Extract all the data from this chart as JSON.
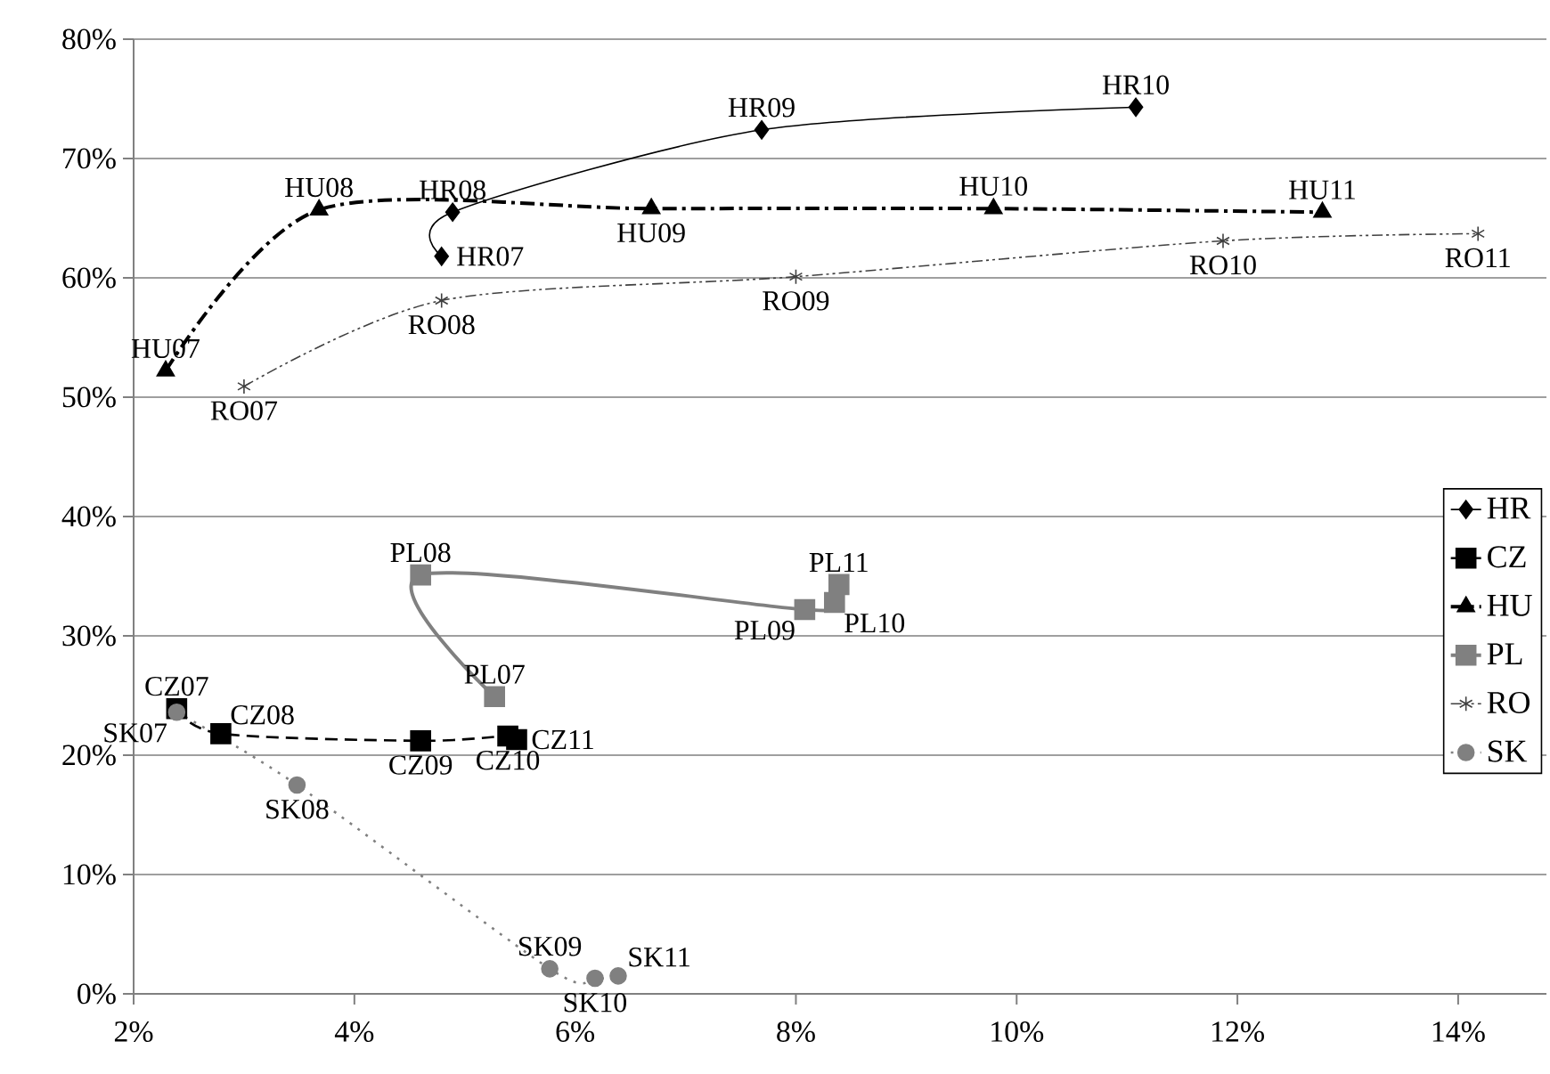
{
  "chart_data": {
    "type": "line",
    "xlim": [
      2,
      14.8
    ],
    "ylim": [
      0,
      80
    ],
    "xticks": [
      {
        "value": 2,
        "label": "2%"
      },
      {
        "value": 4,
        "label": "4%"
      },
      {
        "value": 6,
        "label": "6%"
      },
      {
        "value": 8,
        "label": "8%"
      },
      {
        "value": 10,
        "label": "10%"
      },
      {
        "value": 12,
        "label": "12%"
      },
      {
        "value": 14,
        "label": "14%"
      }
    ],
    "yticks": [
      {
        "value": 0,
        "label": "0%"
      },
      {
        "value": 10,
        "label": "10%"
      },
      {
        "value": 20,
        "label": "20%"
      },
      {
        "value": 30,
        "label": "30%"
      },
      {
        "value": 40,
        "label": "40%"
      },
      {
        "value": 50,
        "label": "50%"
      },
      {
        "value": 60,
        "label": "60%"
      },
      {
        "value": 70,
        "label": "70%"
      },
      {
        "value": 80,
        "label": "80%"
      }
    ],
    "grid": "y",
    "legend": "right",
    "series": [
      {
        "name": "HR",
        "color": "#000000",
        "marker": "diamond",
        "line_style": "solid",
        "x": [
          4.79,
          4.89,
          7.69,
          11.08
        ],
        "values": [
          61.8,
          65.5,
          72.4,
          74.3
        ]
      },
      {
        "name": "CZ",
        "color": "#000000",
        "marker": "square",
        "line_style": "dashed",
        "x": [
          2.39,
          2.79,
          4.6,
          5.39,
          5.47
        ],
        "values": [
          23.9,
          21.8,
          21.2,
          21.6,
          21.3
        ]
      },
      {
        "name": "HU",
        "color": "#000000",
        "marker": "triangle",
        "line_style": "dashdot",
        "x": [
          2.29,
          3.68,
          6.69,
          9.79,
          12.77
        ],
        "values": [
          52.2,
          65.7,
          65.8,
          65.8,
          65.5
        ]
      },
      {
        "name": "PL",
        "color": "#808080",
        "marker": "square",
        "line_style": "solid",
        "x": [
          5.27,
          4.6,
          8.08,
          8.35,
          8.39
        ],
        "values": [
          24.9,
          35.1,
          32.2,
          32.8,
          34.3
        ]
      },
      {
        "name": "RO",
        "color": "#404040",
        "marker": "cross",
        "line_style": "dashdotdot",
        "x": [
          3.0,
          4.79,
          8.0,
          11.87,
          14.18
        ],
        "values": [
          50.9,
          58.1,
          60.1,
          63.1,
          63.7
        ]
      },
      {
        "name": "SK",
        "color": "#808080",
        "marker": "circle",
        "line_style": "dotted",
        "x": [
          2.39,
          3.48,
          5.77,
          6.18,
          6.39
        ],
        "values": [
          23.6,
          17.5,
          2.1,
          1.3,
          1.5
        ]
      }
    ],
    "annotations": [
      {
        "text": "HR07",
        "x": 4.79,
        "y": 61.8
      },
      {
        "text": "HR08",
        "x": 4.89,
        "y": 65.5
      },
      {
        "text": "HR09",
        "x": 7.69,
        "y": 72.4
      },
      {
        "text": "HR10",
        "x": 11.08,
        "y": 74.3
      },
      {
        "text": "CZ07",
        "x": 2.39,
        "y": 23.9
      },
      {
        "text": "CZ08",
        "x": 2.79,
        "y": 21.8
      },
      {
        "text": "CZ09",
        "x": 4.6,
        "y": 21.2
      },
      {
        "text": "CZ10",
        "x": 5.39,
        "y": 21.6
      },
      {
        "text": "CZ11",
        "x": 5.47,
        "y": 21.3
      },
      {
        "text": "HU07",
        "x": 2.29,
        "y": 52.2
      },
      {
        "text": "HU08",
        "x": 3.68,
        "y": 65.7
      },
      {
        "text": "HU09",
        "x": 6.69,
        "y": 65.8
      },
      {
        "text": "HU10",
        "x": 9.79,
        "y": 65.8
      },
      {
        "text": "HU11",
        "x": 12.77,
        "y": 65.5
      },
      {
        "text": "PL07",
        "x": 5.27,
        "y": 24.9
      },
      {
        "text": "PL08",
        "x": 4.6,
        "y": 35.1
      },
      {
        "text": "PL09",
        "x": 8.08,
        "y": 32.2
      },
      {
        "text": "PL10",
        "x": 8.35,
        "y": 32.8
      },
      {
        "text": "PL11",
        "x": 8.39,
        "y": 34.3
      },
      {
        "text": "RO07",
        "x": 3.0,
        "y": 50.9
      },
      {
        "text": "RO08",
        "x": 4.79,
        "y": 58.1
      },
      {
        "text": "RO09",
        "x": 8.0,
        "y": 60.1
      },
      {
        "text": "RO10",
        "x": 11.87,
        "y": 63.1
      },
      {
        "text": "RO11",
        "x": 14.18,
        "y": 63.7
      },
      {
        "text": "SK07",
        "x": 2.39,
        "y": 23.6
      },
      {
        "text": "SK08",
        "x": 3.48,
        "y": 17.5
      },
      {
        "text": "SK09",
        "x": 5.77,
        "y": 2.1
      },
      {
        "text": "SK10",
        "x": 6.18,
        "y": 1.3
      },
      {
        "text": "SK11",
        "x": 6.39,
        "y": 1.5
      }
    ]
  }
}
